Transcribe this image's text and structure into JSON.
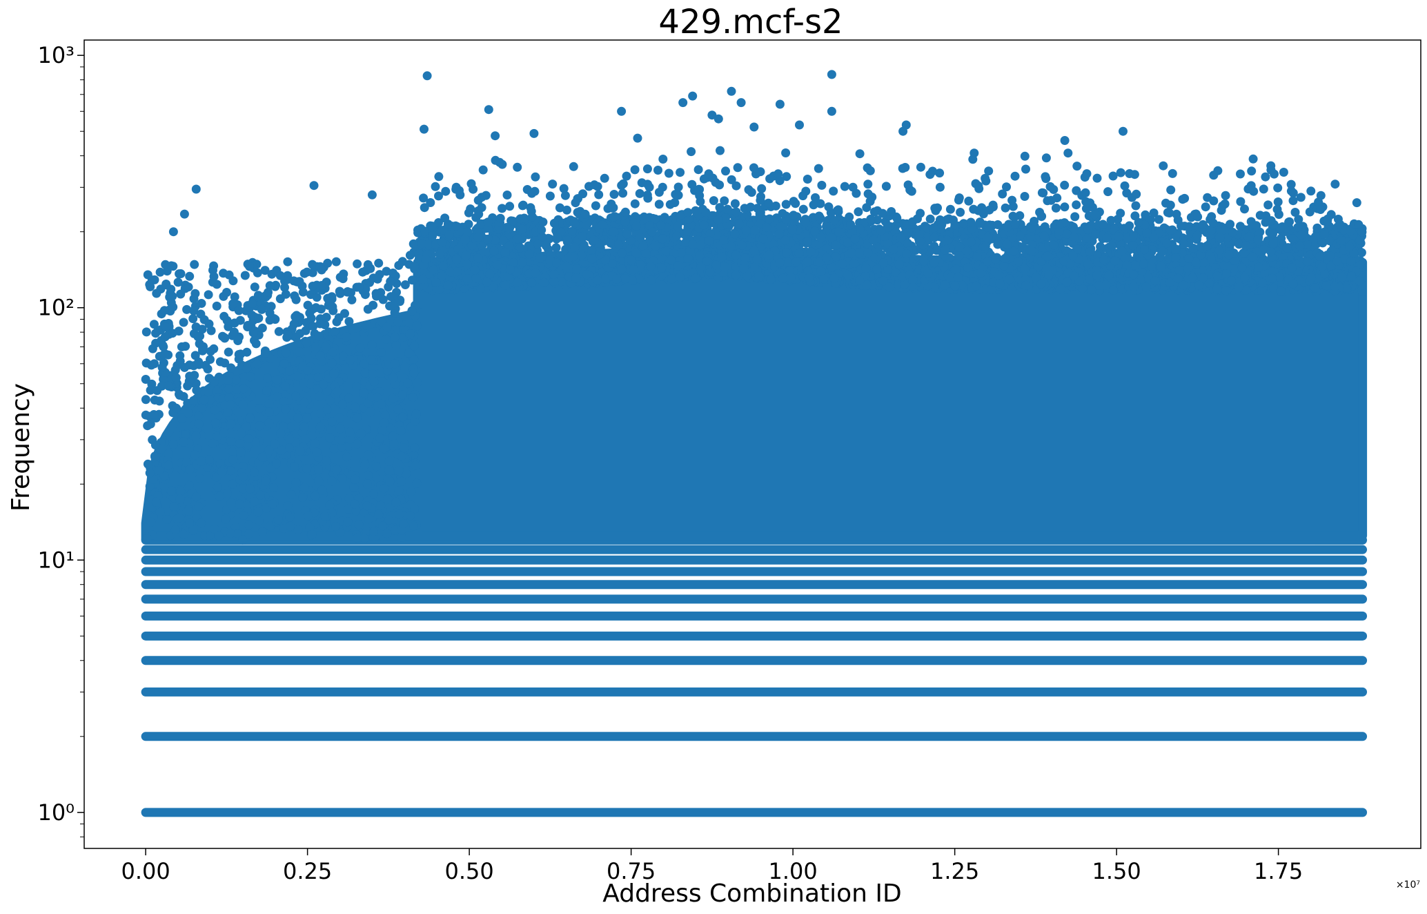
{
  "chart_data": {
    "type": "scatter",
    "title": "429.mcf-s2",
    "xlabel": "Address Combination ID",
    "ylabel": "Frequency",
    "x_offset_text": "×10⁷",
    "xlim": [
      -950000,
      19700000
    ],
    "ylim": [
      0.72,
      1150
    ],
    "yscale": "log",
    "grid": false,
    "color": "#1f77b4",
    "x_ticks": [
      0,
      2500000,
      5000000,
      7500000,
      10000000,
      12500000,
      15000000,
      17500000
    ],
    "x_tick_labels": [
      "0.00",
      "0.25",
      "0.50",
      "0.75",
      "1.00",
      "1.25",
      "1.50",
      "1.75"
    ],
    "y_ticks": [
      1,
      10,
      100,
      1000
    ],
    "y_tick_labels": [
      "10⁰",
      "10¹",
      "10²",
      "10³"
    ],
    "x_range_of_points": [
      0,
      18800000
    ],
    "dense_band_start_x": 4200000,
    "level_bands": [
      1,
      2,
      3,
      4,
      5,
      6,
      7,
      8,
      9,
      10,
      11,
      12
    ],
    "upper_band_top": [
      {
        "x": 0,
        "y": 150
      },
      {
        "x": 4000000,
        "y": 155
      },
      {
        "x": 4200000,
        "y": 210
      },
      {
        "x": 9000000,
        "y": 240
      },
      {
        "x": 12000000,
        "y": 215
      },
      {
        "x": 18800000,
        "y": 210
      }
    ],
    "outliers": [
      {
        "x": 430000,
        "y": 200
      },
      {
        "x": 600000,
        "y": 235
      },
      {
        "x": 780000,
        "y": 295
      },
      {
        "x": 2600000,
        "y": 305
      },
      {
        "x": 3500000,
        "y": 280
      },
      {
        "x": 4300000,
        "y": 510
      },
      {
        "x": 4350000,
        "y": 830
      },
      {
        "x": 5300000,
        "y": 610
      },
      {
        "x": 5400000,
        "y": 480
      },
      {
        "x": 6000000,
        "y": 490
      },
      {
        "x": 7350000,
        "y": 600
      },
      {
        "x": 7600000,
        "y": 470
      },
      {
        "x": 8300000,
        "y": 650
      },
      {
        "x": 8450000,
        "y": 690
      },
      {
        "x": 8750000,
        "y": 580
      },
      {
        "x": 8850000,
        "y": 560
      },
      {
        "x": 9050000,
        "y": 720
      },
      {
        "x": 9200000,
        "y": 650
      },
      {
        "x": 9400000,
        "y": 520
      },
      {
        "x": 9800000,
        "y": 640
      },
      {
        "x": 10100000,
        "y": 530
      },
      {
        "x": 10600000,
        "y": 840
      },
      {
        "x": 10600000,
        "y": 600
      },
      {
        "x": 11750000,
        "y": 530
      },
      {
        "x": 11700000,
        "y": 500
      },
      {
        "x": 12800000,
        "y": 410
      },
      {
        "x": 14200000,
        "y": 460
      },
      {
        "x": 14250000,
        "y": 410
      },
      {
        "x": 15100000,
        "y": 500
      },
      {
        "x": 15200000,
        "y": 340
      },
      {
        "x": 16500000,
        "y": 335
      },
      {
        "x": 16500000,
        "y": 265
      },
      {
        "x": 17300000,
        "y": 330
      },
      {
        "x": 17700000,
        "y": 290
      }
    ]
  }
}
